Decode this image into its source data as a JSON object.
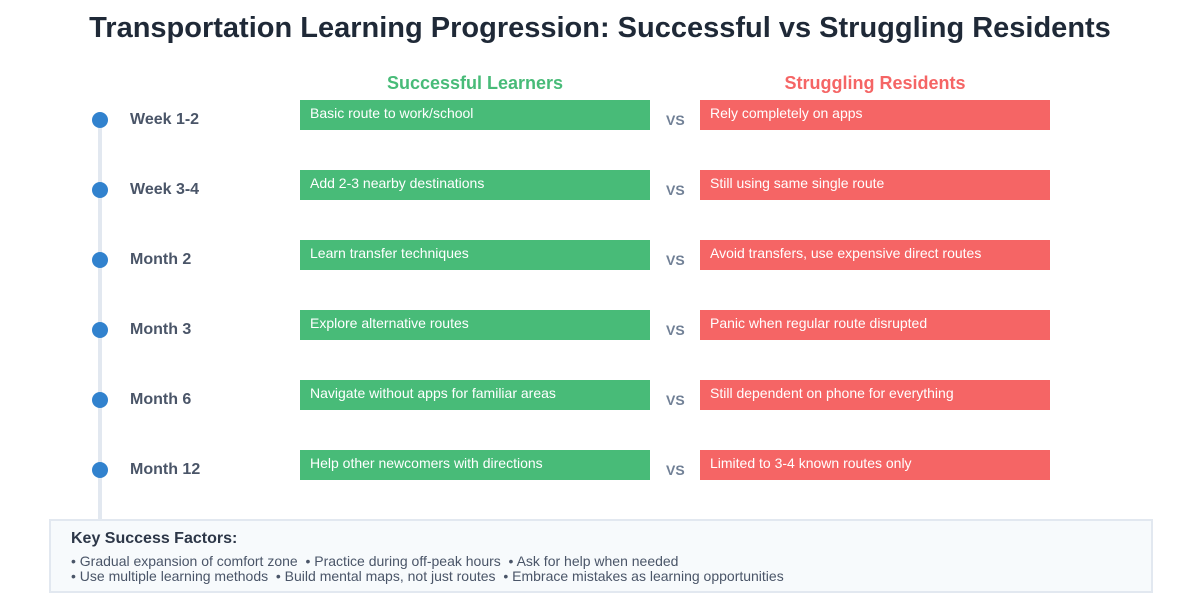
{
  "title": "Transportation Learning Progression: Successful vs Struggling Residents",
  "columns": {
    "successful": "Successful Learners",
    "struggling": "Struggling Residents",
    "vs": "VS"
  },
  "colors": {
    "successful": "#48bb78",
    "struggling": "#f56565",
    "dot": "#3182ce"
  },
  "rows": [
    {
      "period": "Week 1-2",
      "successful": "Basic route to work/school",
      "struggling": "Rely completely on apps"
    },
    {
      "period": "Week 3-4",
      "successful": "Add 2-3 nearby destinations",
      "struggling": "Still using same single route"
    },
    {
      "period": "Month 2",
      "successful": "Learn transfer techniques",
      "struggling": "Avoid transfers, use expensive direct routes"
    },
    {
      "period": "Month 3",
      "successful": "Explore alternative routes",
      "struggling": "Panic when regular route disrupted"
    },
    {
      "period": "Month 6",
      "successful": "Navigate without apps for familiar areas",
      "struggling": "Still dependent on phone for everything"
    },
    {
      "period": "Month 12",
      "successful": "Help other newcomers with directions",
      "struggling": "Limited to 3-4 known routes only"
    }
  ],
  "footer": {
    "title": "Key Success Factors:",
    "line1": "• Gradual expansion of comfort zone  • Practice during off-peak hours  • Ask for help when needed",
    "line2": "• Use multiple learning methods  • Build mental maps, not just routes  • Embrace mistakes as learning opportunities"
  }
}
